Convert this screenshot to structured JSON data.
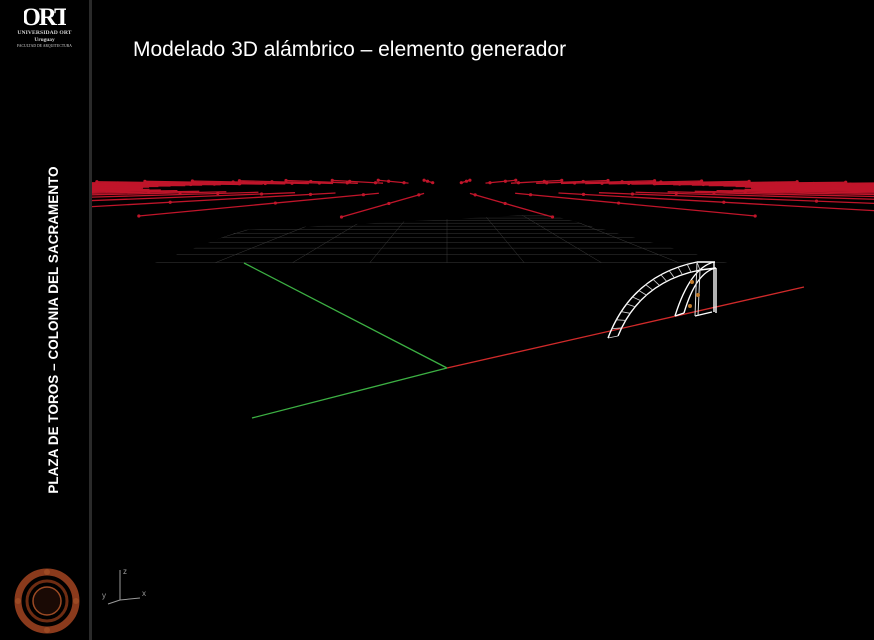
{
  "slide": {
    "title": "Modelado 3D alámbrico – elemento generador"
  },
  "sidebar": {
    "logo_mark": "ORT",
    "logo_line1": "UNIVERSIDAD ORT",
    "logo_line2": "Uruguay",
    "logo_line3": "FACULTAD DE ARQUITECTURA",
    "vertical_title": "PLAZA DE TOROS – COLONIA DEL SACRAMENTO"
  },
  "viewport": {
    "axis_icon_labels": {
      "x": "x",
      "y": "y",
      "z": "z"
    }
  },
  "colors": {
    "background": "#000000",
    "grid": "#3a3a3a",
    "ray": "#c0152a",
    "axis_green": "#3cb043",
    "axis_red": "#d02a2a",
    "emblem": "#8a3a1c"
  }
}
